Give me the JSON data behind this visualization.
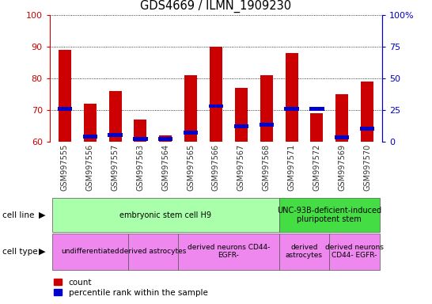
{
  "title": "GDS4669 / ILMN_1909230",
  "samples": [
    "GSM997555",
    "GSM997556",
    "GSM997557",
    "GSM997563",
    "GSM997564",
    "GSM997565",
    "GSM997566",
    "GSM997567",
    "GSM997568",
    "GSM997571",
    "GSM997572",
    "GSM997569",
    "GSM997570"
  ],
  "count_values": [
    89,
    72,
    76,
    67,
    62,
    81,
    90,
    77,
    81,
    88,
    69,
    75,
    79
  ],
  "percentile_values": [
    26,
    4,
    5,
    2,
    2,
    7,
    28,
    12,
    13,
    26,
    26,
    3,
    10
  ],
  "ylim_left": [
    60,
    100
  ],
  "ylim_right": [
    0,
    100
  ],
  "yticks_left": [
    60,
    70,
    80,
    90,
    100
  ],
  "yticks_right": [
    0,
    25,
    50,
    75,
    100
  ],
  "ytick_labels_right": [
    "0",
    "25",
    "50",
    "75",
    "100%"
  ],
  "bar_width": 0.5,
  "count_color": "#cc0000",
  "percentile_color": "#0000cc",
  "cell_line_groups": [
    {
      "label": "embryonic stem cell H9",
      "start": 0,
      "end": 9,
      "color": "#aaffaa"
    },
    {
      "label": "UNC-93B-deficient-induced\npluripotent stem",
      "start": 9,
      "end": 13,
      "color": "#44dd44"
    }
  ],
  "cell_type_groups": [
    {
      "label": "undifferentiated",
      "start": 0,
      "end": 3,
      "color": "#ee88ee"
    },
    {
      "label": "derived astrocytes",
      "start": 3,
      "end": 5,
      "color": "#ee88ee"
    },
    {
      "label": "derived neurons CD44-\nEGFR-",
      "start": 5,
      "end": 9,
      "color": "#ee88ee"
    },
    {
      "label": "derived\nastrocytes",
      "start": 9,
      "end": 11,
      "color": "#ee88ee"
    },
    {
      "label": "derived neurons\nCD44- EGFR-",
      "start": 11,
      "end": 13,
      "color": "#ee88ee"
    }
  ],
  "left_axis_color": "#cc0000",
  "right_axis_color": "#0000cc",
  "xtick_bg_color": "#cccccc"
}
